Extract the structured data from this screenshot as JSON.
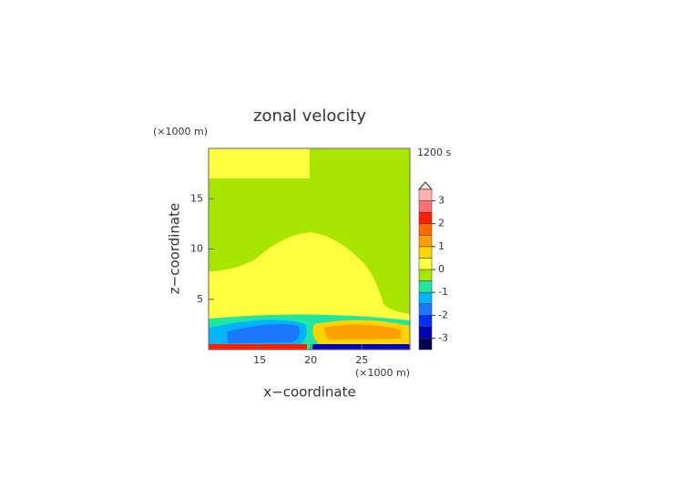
{
  "chart_data": {
    "type": "contour",
    "title": "zonal velocity",
    "xlabel": "x−coordinate",
    "ylabel": "z−coordinate",
    "x_unit": "(×1000 m)",
    "y_unit": "(×1000 m)",
    "time_label": "1200 s",
    "xlim": [
      10,
      29.7
    ],
    "ylim": [
      0,
      20
    ],
    "xticks": [
      15,
      20,
      25
    ],
    "yticks": [
      5,
      10,
      15
    ],
    "colorbar": {
      "levels": [
        -3.5,
        -3,
        -2.5,
        -2,
        -1.5,
        -1,
        -0.5,
        0,
        0.5,
        1,
        1.5,
        2,
        2.5,
        3,
        3.5
      ],
      "colors": [
        "#00005a",
        "#0000b4",
        "#0030ff",
        "#1e78ff",
        "#00b4ff",
        "#20e6a0",
        "#a8e600",
        "#ffff40",
        "#ffd400",
        "#ffa000",
        "#ff6a00",
        "#ff1e00",
        "#ff7070",
        "#ffb0b0"
      ],
      "ticks": [
        -3,
        -2,
        -1,
        0,
        1,
        2,
        3
      ]
    }
  }
}
